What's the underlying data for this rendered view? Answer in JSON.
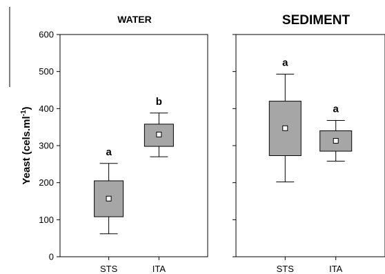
{
  "chart_data": [
    {
      "type": "box",
      "title": "WATER",
      "xlabel": "",
      "ylabel": "Yeast (cels.ml",
      "ylabel_superscript": "-1",
      "ylabel_close": ")",
      "ylim": [
        0,
        600
      ],
      "yticks": [
        0,
        100,
        200,
        300,
        400,
        500,
        600
      ],
      "categories": [
        "STS",
        "ITA"
      ],
      "boxes": [
        {
          "category": "STS",
          "whisker_low": 62,
          "q1": 108,
          "q3": 205,
          "whisker_high": 252,
          "mean": 157,
          "significance": "a"
        },
        {
          "category": "ITA",
          "whisker_low": 270,
          "q1": 298,
          "q3": 358,
          "whisker_high": 388,
          "mean": 330,
          "significance": "b"
        }
      ]
    },
    {
      "type": "box",
      "title": "SEDIMENT",
      "xlabel": "",
      "ylim": [
        0,
        600
      ],
      "categories": [
        "STS",
        "ITA"
      ],
      "boxes": [
        {
          "category": "STS",
          "whisker_low": 202,
          "q1": 273,
          "q3": 420,
          "whisker_high": 493,
          "mean": 347,
          "significance": "a"
        },
        {
          "category": "ITA",
          "whisker_low": 258,
          "q1": 285,
          "q3": 340,
          "whisker_high": 368,
          "mean": 313,
          "significance": "a"
        }
      ]
    }
  ],
  "colors": {
    "box_fill": "#a6a6a6",
    "stroke": "#000000",
    "mean_marker": "#ffffff"
  }
}
